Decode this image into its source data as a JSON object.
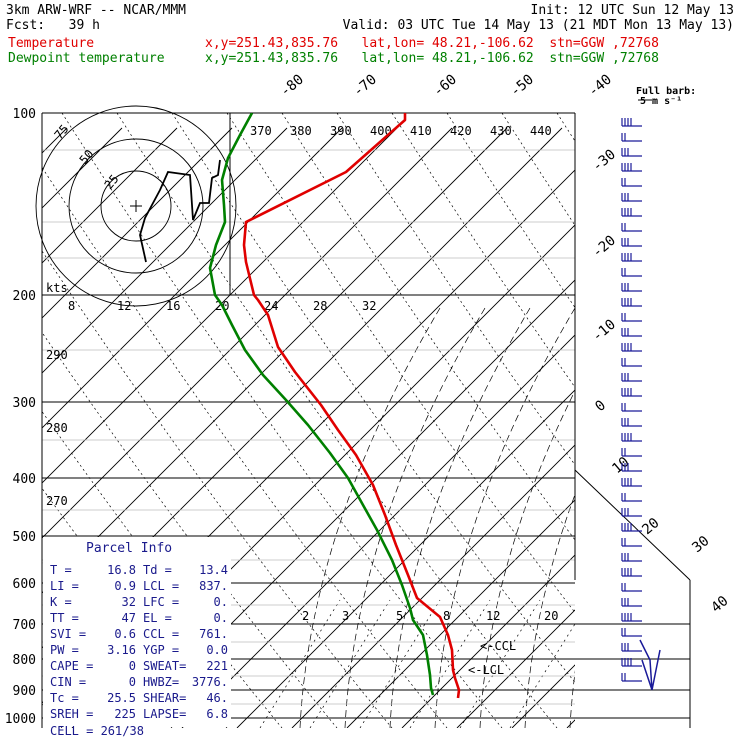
{
  "header": {
    "model": "3km ARW-WRF -- NCAR/MMM",
    "init": "Init: 12 UTC Sun 12 May 13",
    "fcst": "Fcst:   39 h",
    "valid": "Valid: 03 UTC Tue 14 May 13 (21 MDT Mon 13 May 13)",
    "lines": [
      {
        "label": "Temperature",
        "info": "x,y=251.43,835.76   lat,lon= 48.21,-106.62  stn=GGW ,72768",
        "color": "#e00000"
      },
      {
        "label": "Dewpoint temperature",
        "info": "x,y=251.43,835.76   lat,lon= 48.21,-106.62  stn=GGW ,72768",
        "color": "#008000"
      }
    ]
  },
  "barb_legend": {
    "title": "Full barb:",
    "value": "5 m s⁻¹"
  },
  "hodograph": {
    "units": "kts",
    "rings": [
      "25",
      "50",
      "75"
    ],
    "speed_ticks": [
      "8",
      "12",
      "16",
      "20",
      "24",
      "28",
      "32"
    ],
    "theta_labels_top": [
      "370",
      "380",
      "390",
      "400",
      "410",
      "420",
      "430",
      "440"
    ],
    "theta_labels_side": [
      "290",
      "280",
      "270"
    ]
  },
  "parcel_info": {
    "title": "Parcel Info",
    "rows": [
      [
        "T  =",
        "16.8",
        "Td =",
        "13.4"
      ],
      [
        "LI =",
        "0.9",
        "LCL =",
        "837."
      ],
      [
        "K  =",
        "32",
        "LFC =",
        "0."
      ],
      [
        "TT =",
        "47",
        "EL  =",
        "0."
      ],
      [
        "SVI =",
        "0.6",
        "CCL =",
        "761."
      ],
      [
        "PW =",
        "3.16",
        "YGP =",
        "0.0"
      ],
      [
        "CAPE =",
        "0",
        "SWEAT=",
        "221"
      ],
      [
        "CIN =",
        "0",
        "HWBZ=",
        "3776."
      ],
      [
        "Tc =",
        "25.5",
        "SHEAR=",
        "46."
      ],
      [
        "SREH =",
        "225",
        "LAPSE=",
        "6.8"
      ]
    ],
    "cell": "CELL = 261/38"
  },
  "chart_data": {
    "type": "line",
    "subtype": "skew-T log-P",
    "pressure_levels": [
      "100",
      "200",
      "300",
      "400",
      "500",
      "600",
      "700",
      "800",
      "900",
      "1000"
    ],
    "isotherm_labels": [
      "-80",
      "-70",
      "-60",
      "-50",
      "-40",
      "-30",
      "-20",
      "-10",
      "0",
      "10",
      "20",
      "30",
      "40"
    ],
    "mixing_ratio_labels": [
      "2",
      "3",
      "5",
      "8",
      "12",
      "20"
    ],
    "level_markers": [
      "<-CCL",
      "<-LCL"
    ],
    "series": [
      {
        "name": "Temperature",
        "color": "#e00000",
        "points": [
          [
            405,
            113
          ],
          [
            405,
            120
          ],
          [
            346,
            172
          ],
          [
            246,
            222
          ],
          [
            244,
            245
          ],
          [
            246,
            262
          ],
          [
            254,
            295
          ],
          [
            258,
            300
          ],
          [
            268,
            315
          ],
          [
            278,
            347
          ],
          [
            295,
            372
          ],
          [
            321,
            405
          ],
          [
            338,
            430
          ],
          [
            356,
            455
          ],
          [
            373,
            485
          ],
          [
            385,
            515
          ],
          [
            396,
            545
          ],
          [
            408,
            575
          ],
          [
            417,
            598
          ],
          [
            440,
            617
          ],
          [
            448,
            635
          ],
          [
            452,
            650
          ],
          [
            453,
            670
          ],
          [
            455,
            678
          ],
          [
            459,
            690
          ],
          [
            458,
            698
          ]
        ]
      },
      {
        "name": "Dewpoint temperature",
        "color": "#008000",
        "points": [
          [
            252,
            113
          ],
          [
            240,
            135
          ],
          [
            228,
            158
          ],
          [
            222,
            180
          ],
          [
            224,
            205
          ],
          [
            225,
            222
          ],
          [
            216,
            245
          ],
          [
            210,
            268
          ],
          [
            215,
            295
          ],
          [
            222,
            305
          ],
          [
            232,
            325
          ],
          [
            245,
            350
          ],
          [
            263,
            375
          ],
          [
            286,
            400
          ],
          [
            308,
            425
          ],
          [
            330,
            453
          ],
          [
            348,
            478
          ],
          [
            363,
            505
          ],
          [
            377,
            530
          ],
          [
            392,
            560
          ],
          [
            402,
            585
          ],
          [
            410,
            608
          ],
          [
            413,
            620
          ],
          [
            423,
            635
          ],
          [
            427,
            655
          ],
          [
            430,
            675
          ],
          [
            431,
            688
          ],
          [
            433,
            695
          ]
        ]
      }
    ],
    "xlim": [
      -40,
      40
    ],
    "ylim": [
      1000,
      100
    ]
  },
  "wind_barbs_title": "Full barb:"
}
